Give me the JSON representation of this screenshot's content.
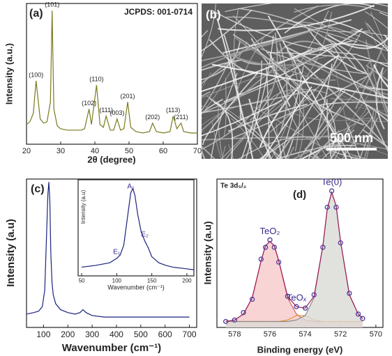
{
  "chart_data": [
    {
      "type": "line",
      "label": "(a)",
      "annotation": "JCPDS: 001-0714",
      "x_label": "2θ (degree)",
      "y_label": "Intensity (a.u.)",
      "x": [
        20,
        21,
        22,
        22.8,
        24,
        25,
        26,
        27,
        27.5,
        28,
        29,
        30,
        32,
        34,
        36,
        37,
        38.3,
        39,
        40.5,
        41.5,
        42.5,
        43.3,
        44.5,
        45.5,
        46.5,
        47.5,
        48.5,
        49.6,
        50.5,
        52,
        54,
        56,
        56.9,
        58,
        60,
        62,
        62.9,
        64,
        65.2,
        66,
        68,
        70
      ],
      "series": [
        {
          "color": "#7a7a1e",
          "values": [
            14,
            16,
            22,
            45,
            18,
            15,
            16,
            30,
            95,
            25,
            13,
            11,
            10,
            10,
            10,
            11,
            25,
            14,
            42,
            14,
            12,
            20,
            10,
            10,
            18,
            10,
            11,
            30,
            12,
            9,
            8,
            9,
            15,
            9,
            8,
            9,
            20,
            11,
            15,
            9,
            8,
            8
          ]
        }
      ],
      "peak_labels": [
        {
          "label": "(100)",
          "x": 22.8
        },
        {
          "label": "(101)",
          "x": 27.5
        },
        {
          "label": "(102)",
          "x": 38.3
        },
        {
          "label": "(110)",
          "x": 40.5
        },
        {
          "label": "(111)",
          "x": 43.3
        },
        {
          "label": "(003)",
          "x": 46.5
        },
        {
          "label": "(201)",
          "x": 49.6
        },
        {
          "label": "(202)",
          "x": 56.9
        },
        {
          "label": "(113)",
          "x": 62.9
        },
        {
          "label": "(211)",
          "x": 65.2
        }
      ],
      "xlim": [
        20,
        70
      ],
      "xticks": [
        20,
        30,
        40,
        50,
        60,
        70
      ],
      "ylim": [
        0,
        100
      ]
    },
    {
      "type": "line",
      "label": "(c)",
      "x_label": "Wavenumber (cm⁻¹)",
      "y_label": "Intensity (a.u)",
      "x": [
        30,
        60,
        80,
        95,
        105,
        112,
        118,
        122,
        126,
        130,
        135,
        140,
        150,
        170,
        200,
        230,
        250,
        262,
        275,
        300,
        350,
        400,
        500,
        600,
        700
      ],
      "series": [
        {
          "color": "#1a237e",
          "values": [
            9,
            10,
            11,
            14,
            25,
            60,
            90,
            98,
            85,
            50,
            30,
            22,
            16,
            12,
            10,
            9,
            10,
            12,
            10,
            8,
            7,
            7,
            7,
            7,
            7
          ]
        }
      ],
      "xlim": [
        30,
        730
      ],
      "xticks": [
        100,
        200,
        300,
        400,
        500,
        600,
        700
      ],
      "ylim": [
        0,
        100
      ]
    },
    {
      "type": "line",
      "x_label": "Wavenumber (cm⁻¹)",
      "y_label": "Intensity (a.u)",
      "x": [
        50,
        70,
        90,
        100,
        105,
        110,
        115,
        120,
        123,
        126,
        130,
        135,
        140,
        145,
        150,
        160,
        170,
        180,
        190,
        200,
        210
      ],
      "series": [
        {
          "color": "#1a237e",
          "values": [
            10,
            12,
            15,
            20,
            24,
            35,
            65,
            95,
            100,
            92,
            70,
            50,
            40,
            32,
            22,
            15,
            12,
            10,
            9,
            8,
            7
          ]
        }
      ],
      "peak_labels": [
        {
          "label": "A₁",
          "x": 120
        },
        {
          "label": "E₁",
          "x": 100
        },
        {
          "label": "E₂",
          "x": 140
        }
      ],
      "xlim": [
        45,
        210
      ],
      "xticks": [
        50,
        100,
        150,
        200
      ],
      "ylim": [
        0,
        110
      ]
    },
    {
      "type": "line",
      "label": "(d)",
      "annotation": "Te 3d₅/₂",
      "x_label": "Binding energy (eV)",
      "y_label": "Intensity (a.u)",
      "x": [
        578.5,
        578,
        577.5,
        577,
        576.5,
        576.25,
        576,
        575.75,
        575.5,
        575,
        574.5,
        574,
        573.5,
        573,
        572.75,
        572.5,
        572.25,
        572,
        571.5,
        571,
        570.75
      ],
      "series": [
        {
          "color": "#e06060",
          "fill": "#f6c9c9",
          "values": [
            4,
            5,
            9,
            20,
            45,
            55,
            58,
            55,
            45,
            20,
            9,
            5,
            4,
            4,
            4,
            4,
            4,
            4,
            4,
            4,
            4
          ]
        },
        {
          "color": "#e8902a",
          "values": [
            4,
            4,
            4,
            4,
            4,
            4,
            4,
            4,
            4,
            5,
            8,
            8,
            5,
            4,
            4,
            4,
            4,
            4,
            4,
            4,
            4
          ]
        },
        {
          "color": "#8a8a8a",
          "fill": "#d9d9d6",
          "values": [
            4,
            4,
            4,
            4,
            4,
            4,
            4,
            4,
            4,
            4,
            5,
            8,
            20,
            55,
            80,
            91,
            82,
            58,
            22,
            9,
            6
          ]
        },
        {
          "color": "#9c1d5a",
          "values": [
            4,
            5,
            9,
            20,
            45,
            55,
            58,
            55,
            45,
            21,
            14,
            13,
            21,
            55,
            80,
            91,
            82,
            58,
            22,
            9,
            6
          ]
        },
        {
          "color": "#4b3a9a",
          "marker": "circle",
          "values": [
            4,
            5,
            10,
            19,
            46,
            54,
            59,
            54,
            44,
            21,
            14,
            13,
            22,
            54,
            81,
            92,
            81,
            57,
            23,
            9,
            6
          ]
        }
      ],
      "peak_labels": [
        {
          "label": "TeO₂",
          "x": 576
        },
        {
          "label": "TeOₓ",
          "x": 574.5
        },
        {
          "label": "Te(0)",
          "x": 572.5
        }
      ],
      "xlim": [
        579,
        569.6
      ],
      "xticks": [
        578,
        576,
        574,
        572,
        570
      ],
      "ylim": [
        0,
        100
      ]
    }
  ],
  "image": {
    "label": "(b)",
    "scale_bar": "500 nm"
  }
}
